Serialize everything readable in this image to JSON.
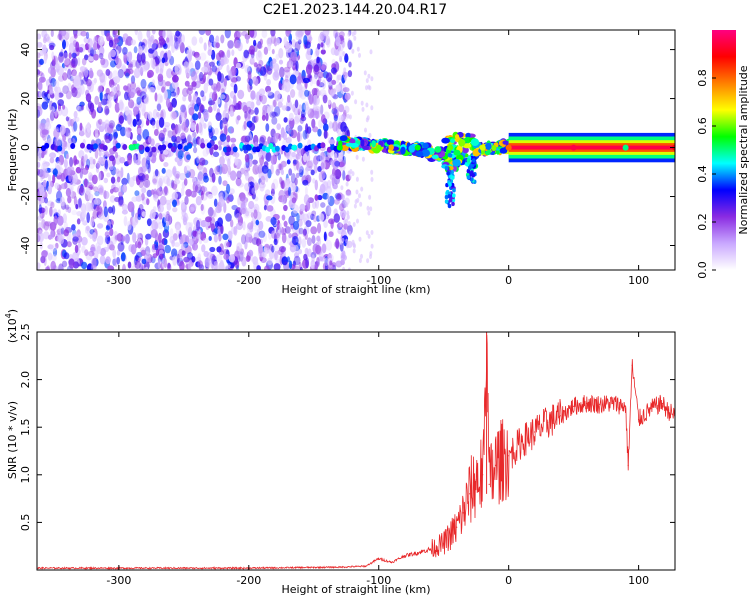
{
  "title": "C2E1.2023.144.20.04.R17",
  "chart_data": [
    {
      "type": "heatmap",
      "title": "C2E1.2023.144.20.04.R17",
      "xlabel": "Height of straight line (km)",
      "ylabel": "Frequency (Hz)",
      "xlim": [
        -363,
        128
      ],
      "ylim": [
        -50,
        48
      ],
      "x_ticks": [
        -300,
        -200,
        -100,
        0,
        100
      ],
      "x_tick_labels": [
        "-300",
        "-200",
        "-100",
        "0",
        "100"
      ],
      "y_ticks": [
        -40,
        -20,
        0,
        20,
        40
      ],
      "y_tick_labels": [
        "-40",
        "-20",
        "0",
        "20",
        "40"
      ],
      "colorbar": {
        "label": "Normalized spectral amplitude",
        "range": [
          0,
          1
        ],
        "ticks": [
          0,
          0.2,
          0.4,
          0.6,
          0.8
        ],
        "tick_labels": [
          "0.0",
          "0.2",
          "0.4",
          "0.6",
          "0.8"
        ],
        "colormap": [
          "#ffffff",
          "#c9a8ff",
          "#8a2be2",
          "#0000ff",
          "#00ffff",
          "#00ff00",
          "#ffff00",
          "#ff8000",
          "#ff0000",
          "#ff0080"
        ]
      },
      "features": {
        "noise_floor_x_range": [
          -363,
          -130
        ],
        "carrier_frequency": 0,
        "broadened_region_x_range": [
          -130,
          0
        ],
        "strong_carrier_x_range": [
          0,
          128
        ],
        "carrier_points": [
          {
            "x": -290,
            "amp": 0.5
          },
          {
            "x": -200,
            "amp": 0.35
          },
          {
            "x": -165,
            "amp": 0.45
          },
          {
            "x": -130,
            "amp": 0.55
          },
          {
            "x": -100,
            "amp": 0.6
          },
          {
            "x": -70,
            "amp": 0.55
          },
          {
            "x": -45,
            "amp": 0.6
          },
          {
            "x": -20,
            "amp": 0.65
          },
          {
            "x": 0,
            "amp": 0.8
          },
          {
            "x": 50,
            "amp": 0.95
          },
          {
            "x": 90,
            "amp": 0.5
          },
          {
            "x": 128,
            "amp": 0.9
          }
        ]
      },
      "grid": false
    },
    {
      "type": "line",
      "xlabel": "Height of straight line (km)",
      "ylabel": "SNR (10 * v/v)",
      "y_multiplier_label": "(x10",
      "y_multiplier_exp": "4",
      "y_multiplier_close": ")",
      "xlim": [
        -363,
        128
      ],
      "ylim": [
        0,
        2.5
      ],
      "x_ticks": [
        -300,
        -200,
        -100,
        0,
        100
      ],
      "x_tick_labels": [
        "-300",
        "-200",
        "-100",
        "0",
        "100"
      ],
      "y_ticks": [
        0.5,
        1.0,
        1.5,
        2.0,
        2.5
      ],
      "y_tick_labels": [
        "0.5",
        "1.0",
        "1.5",
        "2.0",
        "2.5"
      ],
      "color": "#e8282a",
      "grid": false,
      "x": [
        -363,
        -300,
        -200,
        -130,
        -110,
        -100,
        -90,
        -80,
        -70,
        -60,
        -50,
        -40,
        -35,
        -30,
        -25,
        -20,
        -17,
        -15,
        -10,
        -5,
        0,
        10,
        20,
        30,
        40,
        50,
        60,
        70,
        80,
        90,
        92,
        95,
        100,
        110,
        118,
        122,
        128
      ],
      "y": [
        0.02,
        0.02,
        0.02,
        0.03,
        0.04,
        0.12,
        0.08,
        0.15,
        0.18,
        0.22,
        0.28,
        0.45,
        0.6,
        0.8,
        0.95,
        1.0,
        2.5,
        0.9,
        1.1,
        1.15,
        1.2,
        1.35,
        1.45,
        1.55,
        1.62,
        1.72,
        1.75,
        1.74,
        1.75,
        1.72,
        1.1,
        2.15,
        1.58,
        1.7,
        1.75,
        1.68,
        1.62
      ]
    }
  ]
}
